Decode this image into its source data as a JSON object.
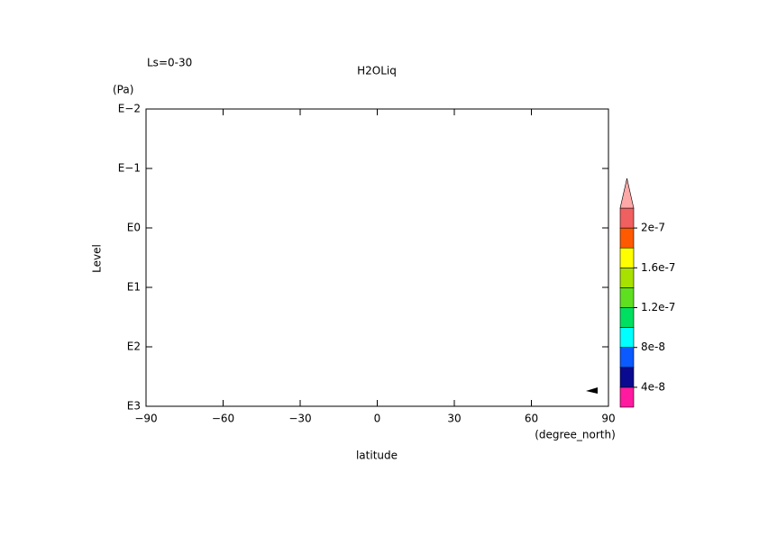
{
  "chart_data": {
    "type": "contour",
    "title": "H2OLiq",
    "annotation": "Ls=0-30",
    "x_label": "latitude",
    "x_unit": "(degree_north)",
    "y_label": "Level",
    "y_unit": "(Pa)",
    "xlim": [
      -90,
      90
    ],
    "xticks": [
      {
        "value": -90,
        "label": "−90"
      },
      {
        "value": -60,
        "label": "−60"
      },
      {
        "value": -30,
        "label": "−30"
      },
      0,
      30,
      60,
      90
    ],
    "ylim": [
      1000,
      0.01
    ],
    "y_log": true,
    "yticks": [
      {
        "value": 1000,
        "label": "E3"
      },
      {
        "value": 100,
        "label": "E2"
      },
      {
        "value": 10,
        "label": "E1"
      },
      {
        "value": 1,
        "label": "E0"
      },
      {
        "value": 0.1,
        "label": "E−1"
      },
      {
        "value": 0.01,
        "label": "E−2"
      }
    ],
    "colorbar": {
      "lim": [
        2e-08,
        2.2e-07
      ],
      "colors": [
        "#ff1aa0",
        "#0a0a90",
        "#0a5aff",
        "#00ffff",
        "#00e060",
        "#5ee020",
        "#a8e000",
        "#ffff00",
        "#ff5a00",
        "#f06060"
      ],
      "extend_color": "#ffa8a8",
      "ticks": [
        4e-08,
        8e-08,
        1.2e-07,
        1.6e-07,
        2e-07
      ]
    }
  }
}
